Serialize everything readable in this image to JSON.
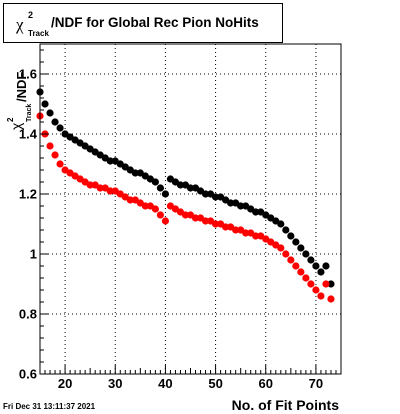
{
  "header": {
    "title_chi": "χ",
    "title_sup": "2",
    "title_sub": "Track",
    "title_main": "/NDF for Global Rec Pion NoHits"
  },
  "footer": {
    "timestamp": "Fri Dec 31 13:11:37 2021"
  },
  "axes": {
    "xlabel": "No. of Fit Points",
    "ylabel_chi": "χ",
    "ylabel_sup": "2",
    "ylabel_sub": "Track",
    "ylabel_main": "/NDF"
  },
  "colors": {
    "series_black": "#000000",
    "series_red": "#ff0000",
    "grid": "#000000"
  },
  "chart_data": {
    "type": "scatter",
    "xlim": [
      15,
      75
    ],
    "ylim": [
      0.6,
      1.7
    ],
    "xticks": [
      20,
      30,
      40,
      50,
      60,
      70
    ],
    "yticks": [
      0.6,
      0.8,
      1,
      1.2,
      1.4,
      1.6
    ],
    "grid": true,
    "series": [
      {
        "color": "#000000",
        "points": [
          [
            15,
            1.54
          ],
          [
            16,
            1.5
          ],
          [
            17,
            1.47
          ],
          [
            18,
            1.44
          ],
          [
            19,
            1.42
          ],
          [
            20,
            1.4
          ],
          [
            21,
            1.39
          ],
          [
            22,
            1.38
          ],
          [
            23,
            1.37
          ],
          [
            24,
            1.36
          ],
          [
            25,
            1.35
          ],
          [
            26,
            1.34
          ],
          [
            27,
            1.33
          ],
          [
            28,
            1.32
          ],
          [
            29,
            1.31
          ],
          [
            30,
            1.31
          ],
          [
            31,
            1.3
          ],
          [
            32,
            1.29
          ],
          [
            33,
            1.28
          ],
          [
            34,
            1.27
          ],
          [
            35,
            1.27
          ],
          [
            36,
            1.26
          ],
          [
            37,
            1.25
          ],
          [
            38,
            1.24
          ],
          [
            39,
            1.22
          ],
          [
            40,
            1.2
          ],
          [
            41,
            1.25
          ],
          [
            42,
            1.24
          ],
          [
            43,
            1.23
          ],
          [
            44,
            1.23
          ],
          [
            45,
            1.22
          ],
          [
            46,
            1.22
          ],
          [
            47,
            1.21
          ],
          [
            48,
            1.2
          ],
          [
            49,
            1.2
          ],
          [
            50,
            1.19
          ],
          [
            51,
            1.19
          ],
          [
            52,
            1.18
          ],
          [
            53,
            1.17
          ],
          [
            54,
            1.17
          ],
          [
            55,
            1.16
          ],
          [
            56,
            1.16
          ],
          [
            57,
            1.15
          ],
          [
            58,
            1.14
          ],
          [
            59,
            1.14
          ],
          [
            60,
            1.13
          ],
          [
            61,
            1.12
          ],
          [
            62,
            1.11
          ],
          [
            63,
            1.1
          ],
          [
            64,
            1.08
          ],
          [
            65,
            1.06
          ],
          [
            66,
            1.04
          ],
          [
            67,
            1.02
          ],
          [
            68,
            1
          ],
          [
            69,
            0.98
          ],
          [
            70,
            0.96
          ],
          [
            71,
            0.94
          ],
          [
            72,
            0.96
          ],
          [
            73,
            0.9
          ]
        ]
      },
      {
        "color": "#ff0000",
        "points": [
          [
            15,
            1.46
          ],
          [
            16,
            1.4
          ],
          [
            17,
            1.36
          ],
          [
            18,
            1.33
          ],
          [
            19,
            1.3
          ],
          [
            20,
            1.28
          ],
          [
            21,
            1.27
          ],
          [
            22,
            1.26
          ],
          [
            23,
            1.25
          ],
          [
            24,
            1.24
          ],
          [
            25,
            1.23
          ],
          [
            26,
            1.23
          ],
          [
            27,
            1.22
          ],
          [
            28,
            1.22
          ],
          [
            29,
            1.21
          ],
          [
            30,
            1.21
          ],
          [
            31,
            1.2
          ],
          [
            32,
            1.19
          ],
          [
            33,
            1.18
          ],
          [
            34,
            1.18
          ],
          [
            35,
            1.17
          ],
          [
            36,
            1.16
          ],
          [
            37,
            1.16
          ],
          [
            38,
            1.15
          ],
          [
            39,
            1.13
          ],
          [
            40,
            1.11
          ],
          [
            41,
            1.16
          ],
          [
            42,
            1.15
          ],
          [
            43,
            1.14
          ],
          [
            44,
            1.13
          ],
          [
            45,
            1.13
          ],
          [
            46,
            1.12
          ],
          [
            47,
            1.12
          ],
          [
            48,
            1.11
          ],
          [
            49,
            1.11
          ],
          [
            50,
            1.1
          ],
          [
            51,
            1.1
          ],
          [
            52,
            1.09
          ],
          [
            53,
            1.09
          ],
          [
            54,
            1.08
          ],
          [
            55,
            1.08
          ],
          [
            56,
            1.07
          ],
          [
            57,
            1.07
          ],
          [
            58,
            1.06
          ],
          [
            59,
            1.06
          ],
          [
            60,
            1.05
          ],
          [
            61,
            1.04
          ],
          [
            62,
            1.03
          ],
          [
            63,
            1.02
          ],
          [
            64,
            1
          ],
          [
            65,
            0.98
          ],
          [
            66,
            0.96
          ],
          [
            67,
            0.94
          ],
          [
            68,
            0.92
          ],
          [
            69,
            0.9
          ],
          [
            70,
            0.88
          ],
          [
            71,
            0.86
          ],
          [
            72,
            0.9
          ],
          [
            73,
            0.85
          ]
        ]
      }
    ]
  }
}
